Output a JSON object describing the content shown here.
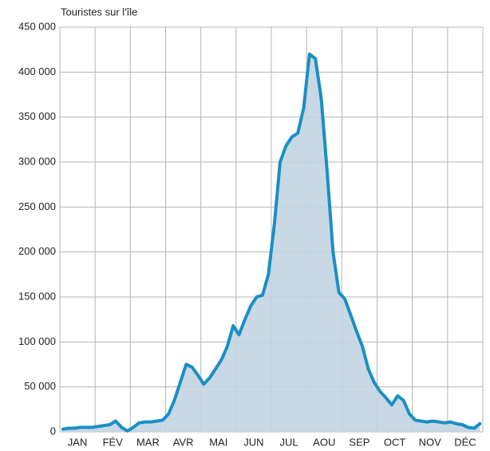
{
  "chart_data": {
    "type": "area",
    "title": "Touristes sur l'île",
    "categories": [
      "JAN",
      null,
      null,
      null,
      null,
      null,
      "FÉV",
      null,
      null,
      null,
      null,
      null,
      "MAR",
      null,
      null,
      null,
      null,
      null,
      "AVR",
      null,
      null,
      null,
      null,
      null,
      "MAI",
      null,
      null,
      null,
      null,
      null,
      "JUN",
      null,
      null,
      null,
      null,
      null,
      "JUL",
      null,
      null,
      null,
      null,
      null,
      "AOU",
      null,
      null,
      null,
      null,
      null,
      "SEP",
      null,
      null,
      null,
      null,
      null,
      "OCT",
      null,
      null,
      null,
      null,
      null,
      "NOV",
      null,
      null,
      null,
      null,
      null,
      "DÉC",
      null,
      null,
      null,
      null,
      null
    ],
    "series": [
      {
        "color": "#1a8fc4",
        "values": [
          3000,
          4000,
          4000,
          5000,
          5000,
          5000,
          6000,
          7000,
          8000,
          12000,
          5000,
          1000,
          5000,
          10000,
          11000,
          11000,
          12000,
          13000,
          20000,
          35000,
          55000,
          75000,
          72000,
          63000,
          53000,
          60000,
          70000,
          80000,
          95000,
          118000,
          108000,
          125000,
          140000,
          150000,
          152000,
          175000,
          230000,
          300000,
          318000,
          328000,
          332000,
          360000,
          420000,
          415000,
          370000,
          290000,
          200000,
          155000,
          148000,
          130000,
          112000,
          95000,
          70000,
          55000,
          45000,
          38000,
          30000,
          40000,
          35000,
          20000,
          13000,
          12000,
          11000,
          12000,
          11000,
          10000,
          11000,
          9000,
          8000,
          5000,
          4000,
          9000
        ]
      }
    ],
    "fill": "#c3d4e2",
    "ylim": [
      0,
      450000
    ],
    "yticks": [
      0,
      {
        "value": 50000,
        "label": "50 000"
      },
      {
        "value": 100000,
        "label": "100 000"
      },
      {
        "value": 150000,
        "label": "150 000"
      },
      {
        "value": 200000,
        "label": "200 000"
      },
      {
        "value": 250000,
        "label": "250 000"
      },
      {
        "value": 300000,
        "label": "300 000"
      },
      {
        "value": 350000,
        "label": "350 000"
      },
      {
        "value": 400000,
        "label": "400 000"
      },
      {
        "value": 450000,
        "label": "450 000"
      }
    ],
    "grid": true
  }
}
